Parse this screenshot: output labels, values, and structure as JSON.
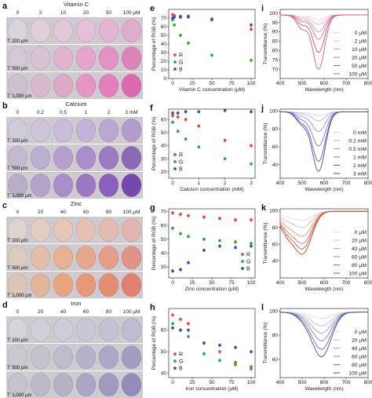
{
  "colors": {
    "R": "#e8473a",
    "G": "#2eaa4b",
    "B": "#3a4fbf",
    "vitc_spectra": [
      "#f7d0e0",
      "#f0b0cc",
      "#e88ab4",
      "#de6a9e",
      "#d24b86",
      "#e05a8a"
    ],
    "calcium_spectra": [
      "#d9d2ee",
      "#bdb2e3",
      "#a292d6",
      "#8772c8",
      "#6c55b8",
      "#5542a6",
      "#3f2f90"
    ],
    "zinc_spectra": [
      "#f7d6c8",
      "#f2b59e",
      "#ec9477",
      "#e27456",
      "#d85a3e",
      "#b54a34"
    ],
    "iron_spectra": [
      "#d7d8ec",
      "#b9bcdf",
      "#9aa0cf",
      "#7d84bf",
      "#6269ad",
      "#4a4f99"
    ],
    "vitc_wells": [
      "#ccc2cf",
      "#d6b9cd",
      "#dea8c8",
      "#e495c4",
      "#e37fba",
      "#dd6aaf"
    ],
    "calcium_wells": [
      "#b9aec9",
      "#b3a2c9",
      "#a98fc7",
      "#9a79c2",
      "#8a60bb",
      "#7548ad"
    ],
    "zinc_wells": [
      "#dcc5b6",
      "#e2b49a",
      "#e8a57f",
      "#e79977",
      "#e58d73",
      "#e1806f"
    ],
    "iron_wells": [
      "#c5c3cb",
      "#bdbac8",
      "#b5b1c6",
      "#aba6c4",
      "#a09ac0",
      "#948cbb"
    ]
  },
  "panels": [
    {
      "letter": "a",
      "title": "Vitamin C",
      "concentrations": [
        "0",
        "2",
        "10",
        "20",
        "50",
        "100 µM"
      ],
      "time_labels": [
        "T: 200 µm",
        "T: 500 µm",
        "T: 1,000 µm"
      ]
    },
    {
      "letter": "b",
      "title": "Calcium",
      "concentrations": [
        "0",
        "0.2",
        "0.5",
        "1",
        "2",
        "3 mM"
      ],
      "time_labels": [
        "T: 200 µm",
        "T: 500 µm",
        "T: 1,000 µm"
      ]
    },
    {
      "letter": "c",
      "title": "Zinc",
      "concentrations": [
        "0",
        "20",
        "40",
        "60",
        "80",
        "100 µM"
      ],
      "time_labels": [
        "T: 200 µm",
        "T: 500 µm",
        "T: 1,000 µm"
      ]
    },
    {
      "letter": "d",
      "title": "Iron",
      "concentrations": [
        "0",
        "20",
        "40",
        "60",
        "80",
        "100 µM"
      ],
      "time_labels": [
        "T: 200 µm",
        "T: 500 µm",
        "T: 1,000 µm"
      ]
    }
  ],
  "chart_data": [
    {
      "letter": "e",
      "type": "scatter",
      "xlabel": "Vitamin C concentration (µM)",
      "ylabel": "Percentage of RGB (%)",
      "xlim": [
        -5,
        105
      ],
      "ylim": [
        0,
        80
      ],
      "xticks": [
        0,
        25,
        50,
        75,
        100
      ],
      "yticks": [
        0,
        10,
        20,
        30,
        40,
        50,
        60,
        70
      ],
      "series": [
        {
          "name": "R",
          "x": [
            0,
            2,
            10,
            20,
            50,
            100
          ],
          "y": [
            74,
            73,
            72,
            71,
            69,
            57
          ]
        },
        {
          "name": "G",
          "x": [
            0,
            2,
            10,
            20,
            50,
            100
          ],
          "y": [
            68,
            62,
            50,
            41,
            27,
            21
          ]
        },
        {
          "name": "B",
          "x": [
            0,
            2,
            10,
            20,
            50,
            100
          ],
          "y": [
            70,
            71,
            71,
            72,
            68,
            62
          ]
        }
      ],
      "legend": [
        "R",
        "G",
        "B"
      ],
      "legend_position": "lower-left"
    },
    {
      "letter": "f",
      "type": "scatter",
      "xlabel": "Calcium concentration (mM)",
      "ylabel": "Percentage of RGB (%)",
      "xlim": [
        -0.15,
        3.15
      ],
      "ylim": [
        15,
        68
      ],
      "xticks": [
        0,
        1,
        2,
        3
      ],
      "yticks": [
        20,
        30,
        40,
        50,
        60
      ],
      "series": [
        {
          "name": "R",
          "x": [
            0,
            0.2,
            0.5,
            1,
            2,
            3
          ],
          "y": [
            63,
            62,
            60,
            55,
            44,
            40
          ]
        },
        {
          "name": "G",
          "x": [
            0,
            0.2,
            0.5,
            1,
            2,
            3
          ],
          "y": [
            58,
            51,
            45,
            39,
            30,
            26
          ]
        },
        {
          "name": "B",
          "x": [
            0,
            0.2,
            0.5,
            1,
            2,
            3
          ],
          "y": [
            65,
            65,
            66,
            66,
            67,
            66
          ]
        }
      ],
      "legend": [
        "R",
        "G",
        "B"
      ],
      "legend_position": "lower-left"
    },
    {
      "letter": "g",
      "type": "scatter",
      "xlabel": "Zinc concentration (µM)",
      "ylabel": "Percentage of RGB (%)",
      "xlim": [
        -5,
        105
      ],
      "ylim": [
        22,
        72
      ],
      "xticks": [
        0,
        25,
        50,
        75,
        100
      ],
      "yticks": [
        30,
        40,
        50,
        60,
        70
      ],
      "series": [
        {
          "name": "R",
          "x": [
            0,
            10,
            20,
            40,
            60,
            80,
            100
          ],
          "y": [
            69,
            68,
            67,
            66,
            65,
            64,
            64
          ]
        },
        {
          "name": "G",
          "x": [
            0,
            10,
            20,
            40,
            60,
            80,
            100
          ],
          "y": [
            58,
            54,
            52,
            50,
            49,
            48,
            47
          ]
        },
        {
          "name": "B",
          "x": [
            0,
            10,
            20,
            40,
            60,
            80,
            100
          ],
          "y": [
            27,
            28,
            33,
            42,
            45,
            44,
            45
          ]
        }
      ],
      "legend": [
        "R",
        "G",
        "B"
      ],
      "legend_position": "lower-right"
    },
    {
      "letter": "h",
      "type": "scatter",
      "xlabel": "Iron concentration (µM)",
      "ylabel": "Percentage of RGB (%)",
      "xlim": [
        -5,
        105
      ],
      "ylim": [
        38,
        70
      ],
      "xticks": [
        0,
        25,
        50,
        75,
        100
      ],
      "yticks": [
        40,
        50,
        60
      ],
      "series": [
        {
          "name": "R",
          "x": [
            0,
            10,
            20,
            40,
            60,
            80,
            100
          ],
          "y": [
            67,
            65,
            63,
            54,
            50,
            45,
            43
          ]
        },
        {
          "name": "G",
          "x": [
            0,
            10,
            20,
            40,
            60,
            80,
            100
          ],
          "y": [
            63,
            60,
            57,
            49,
            46,
            44,
            42
          ]
        },
        {
          "name": "B",
          "x": [
            0,
            10,
            20,
            40,
            60,
            80,
            100
          ],
          "y": [
            61,
            60,
            60,
            54,
            53,
            52,
            50
          ]
        }
      ],
      "legend": [
        "R",
        "G",
        "B"
      ],
      "legend_position": "lower-left"
    },
    {
      "letter": "i",
      "type": "line",
      "xlabel": "Wavelength (nm)",
      "ylabel": "Transmittance (%)",
      "xlim": [
        400,
        800
      ],
      "ylim": [
        65,
        102
      ],
      "xticks": [
        400,
        500,
        600,
        700,
        800
      ],
      "yticks": [
        70,
        75,
        80,
        85,
        90,
        95,
        100
      ],
      "dip_center": 575,
      "dip_width": 38,
      "shoulder": 0.25,
      "series": [
        {
          "name": "0 µM",
          "dip_depth": 2.5
        },
        {
          "name": "2 µM",
          "dip_depth": 5
        },
        {
          "name": "10 µM",
          "dip_depth": 9
        },
        {
          "name": "20 µM",
          "dip_depth": 13
        },
        {
          "name": "50 µM",
          "dip_depth": 20
        },
        {
          "name": "100 µM",
          "dip_depth": 29
        }
      ],
      "legend_position": "right"
    },
    {
      "letter": "j",
      "type": "line",
      "xlabel": "Wavelength (nm)",
      "ylabel": "Transmittance (%)",
      "xlim": [
        400,
        800
      ],
      "ylim": [
        25,
        102
      ],
      "xticks": [
        400,
        500,
        600,
        700,
        800
      ],
      "yticks": [
        40,
        60,
        80,
        100
      ],
      "dip_center": 575,
      "dip_width": 42,
      "shoulder": 0.2,
      "series": [
        {
          "name": "0 mM",
          "dip_depth": 4
        },
        {
          "name": "0.2 mM",
          "dip_depth": 10
        },
        {
          "name": "0.5 mM",
          "dip_depth": 22
        },
        {
          "name": "1 mM",
          "dip_depth": 38
        },
        {
          "name": "2 mM",
          "dip_depth": 55
        },
        {
          "name": "3 mM",
          "dip_depth": 66
        }
      ],
      "legend_position": "right"
    },
    {
      "letter": "k",
      "type": "line",
      "xlabel": "Wavelength (nm)",
      "ylabel": "Transmittance (%)",
      "xlim": [
        400,
        800
      ],
      "ylim": [
        20,
        102
      ],
      "xticks": [
        400,
        500,
        600,
        700,
        800
      ],
      "yticks": [
        40,
        60,
        80,
        100
      ],
      "dip_center": 505,
      "dip_width": 55,
      "shoulder": 0.5,
      "series": [
        {
          "name": "0 µM",
          "dip_depth": 10
        },
        {
          "name": "20 µM",
          "dip_depth": 18
        },
        {
          "name": "40 µM",
          "dip_depth": 28
        },
        {
          "name": "60 µM",
          "dip_depth": 36
        },
        {
          "name": "80 µM",
          "dip_depth": 42
        },
        {
          "name": "100 µM",
          "dip_depth": 48
        }
      ],
      "legend_position": "right"
    },
    {
      "letter": "l",
      "type": "line",
      "xlabel": "Wavelength (nm)",
      "ylabel": "Transmittance (%)",
      "xlim": [
        400,
        800
      ],
      "ylim": [
        45,
        102
      ],
      "xticks": [
        400,
        500,
        600,
        700,
        800
      ],
      "yticks": [
        60,
        80,
        100
      ],
      "dip_center": 590,
      "dip_width": 60,
      "shoulder": 0.15,
      "series": [
        {
          "name": "0 µM",
          "dip_depth": 5
        },
        {
          "name": "20 µM",
          "dip_depth": 11
        },
        {
          "name": "40 µM",
          "dip_depth": 17
        },
        {
          "name": "60 µM",
          "dip_depth": 23
        },
        {
          "name": "80 µM",
          "dip_depth": 30
        },
        {
          "name": "100 µM",
          "dip_depth": 36
        }
      ],
      "legend_position": "right"
    }
  ]
}
